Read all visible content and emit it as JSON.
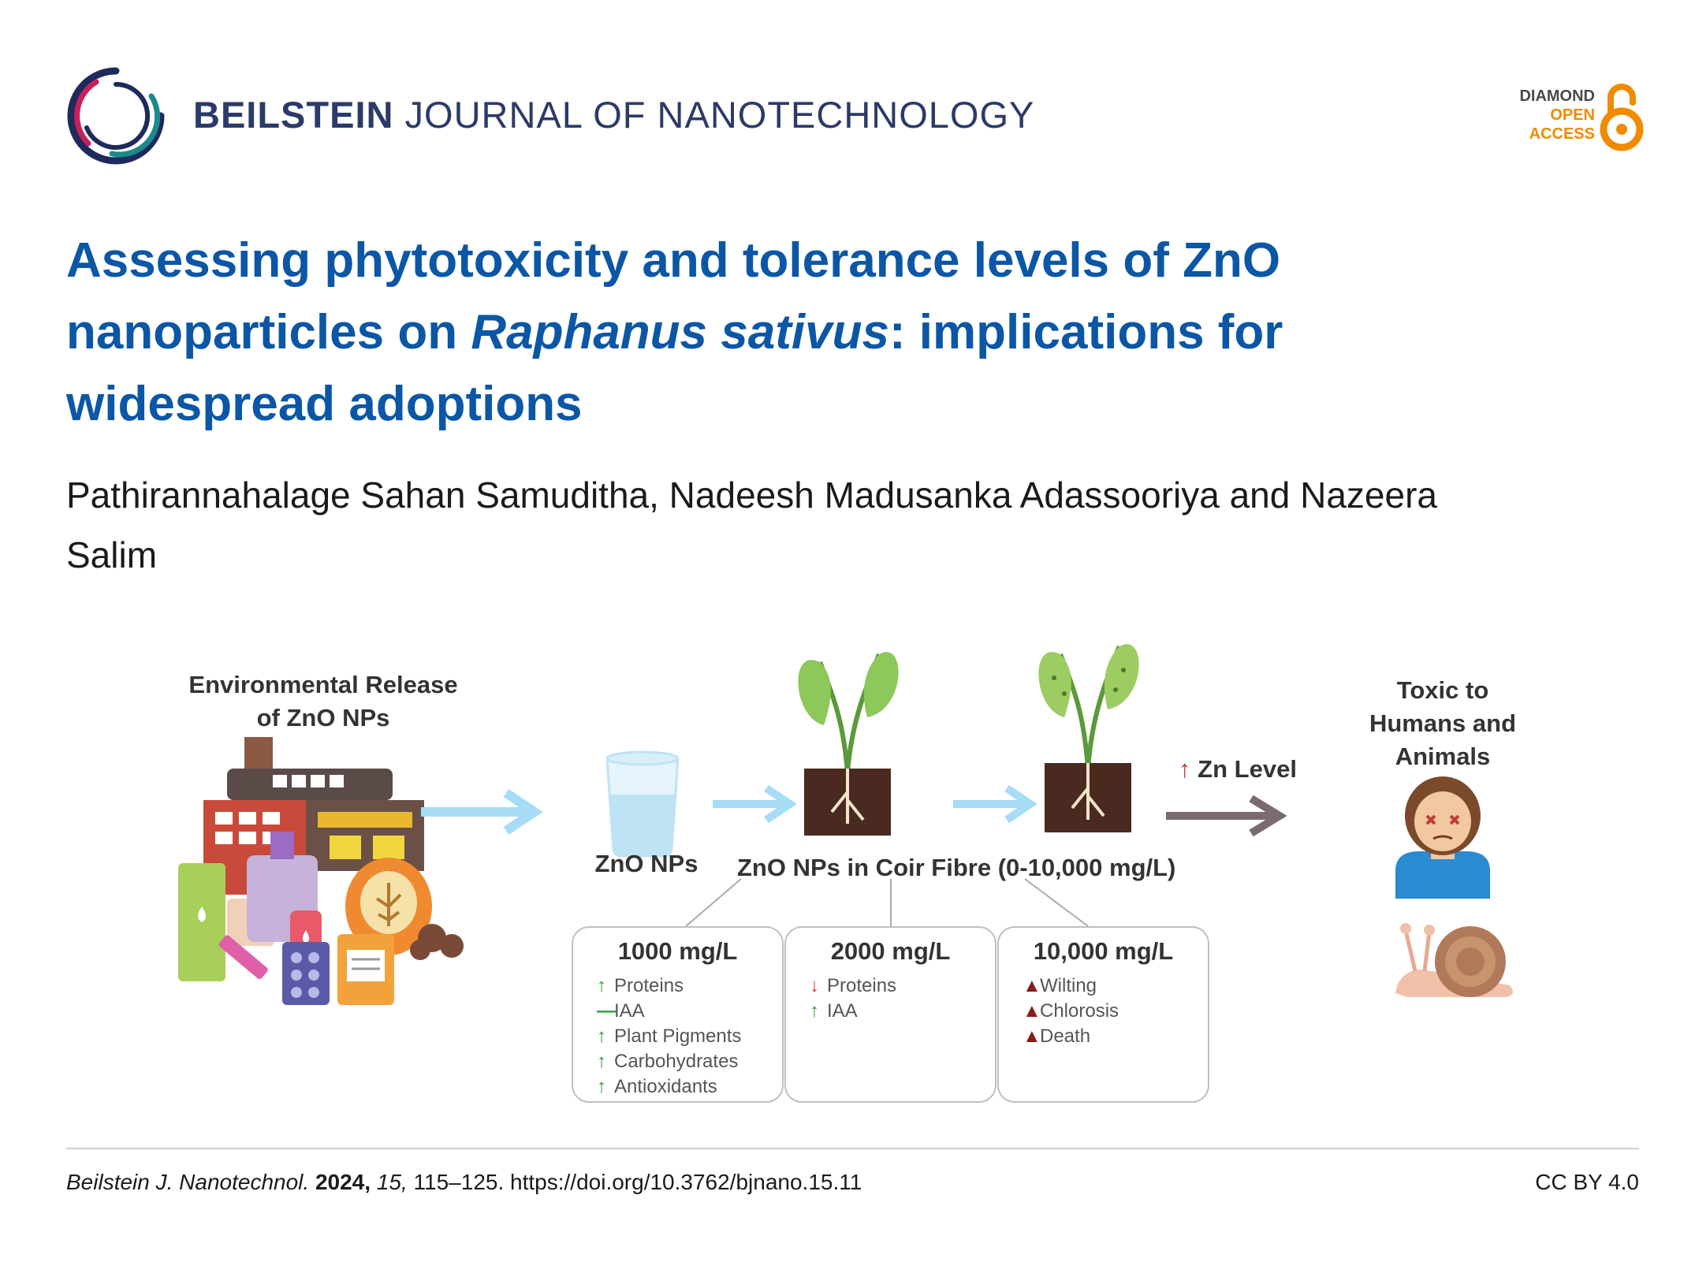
{
  "header": {
    "journal_bold": "BEILSTEIN",
    "journal_rest": " JOURNAL OF NANOTECHNOLOGY",
    "oa_line1": "DIAMOND",
    "oa_line2": "OPEN",
    "oa_line3": "ACCESS"
  },
  "article": {
    "title_part1": "Assessing phytotoxicity and tolerance levels of ZnO nanoparticles on ",
    "title_italic": "Raphanus sativus",
    "title_part2": ": implications for widespread adoptions",
    "authors": "Pathirannahalage Sahan Samuditha, Nadeesh Madusanka Adassooriya and Nazeera Salim"
  },
  "figure": {
    "release_label_l1": "Environmental Release",
    "release_label_l2": "of ZnO NPs",
    "beaker_label": "ZnO NPs",
    "coir_label": "ZnO NPs in Coir Fibre (0-10,000 mg/L)",
    "zn_level_arrow": "↑",
    "zn_level": "Zn Level",
    "toxic_l1": "Toxic to",
    "toxic_l2": "Humans and",
    "toxic_l3": "Animals",
    "boxes": [
      {
        "heading": "1000 mg/L",
        "items": [
          {
            "mark": "↑",
            "text": "Proteins"
          },
          {
            "mark": "—",
            "text": "IAA"
          },
          {
            "mark": "↑",
            "text": "Plant Pigments"
          },
          {
            "mark": "↑",
            "text": "Carbohydrates"
          },
          {
            "mark": "↑",
            "text": "Antioxidants"
          }
        ]
      },
      {
        "heading": "2000 mg/L",
        "items": [
          {
            "mark": "↓",
            "text": "Proteins"
          },
          {
            "mark": "↑",
            "text": "IAA"
          }
        ]
      },
      {
        "heading": "10,000 mg/L",
        "items": [
          {
            "mark": "▲",
            "text": "Wilting"
          },
          {
            "mark": "▲",
            "text": "Chlorosis"
          },
          {
            "mark": "▲",
            "text": "Death"
          }
        ]
      }
    ]
  },
  "footer": {
    "journal_abbrev": "Beilstein J. Nanotechnol.",
    "year": "2024,",
    "volume": "15,",
    "pages_doi": "115–125. https://doi.org/10.3762/bjnano.15.11",
    "license": "CC BY 4.0"
  }
}
